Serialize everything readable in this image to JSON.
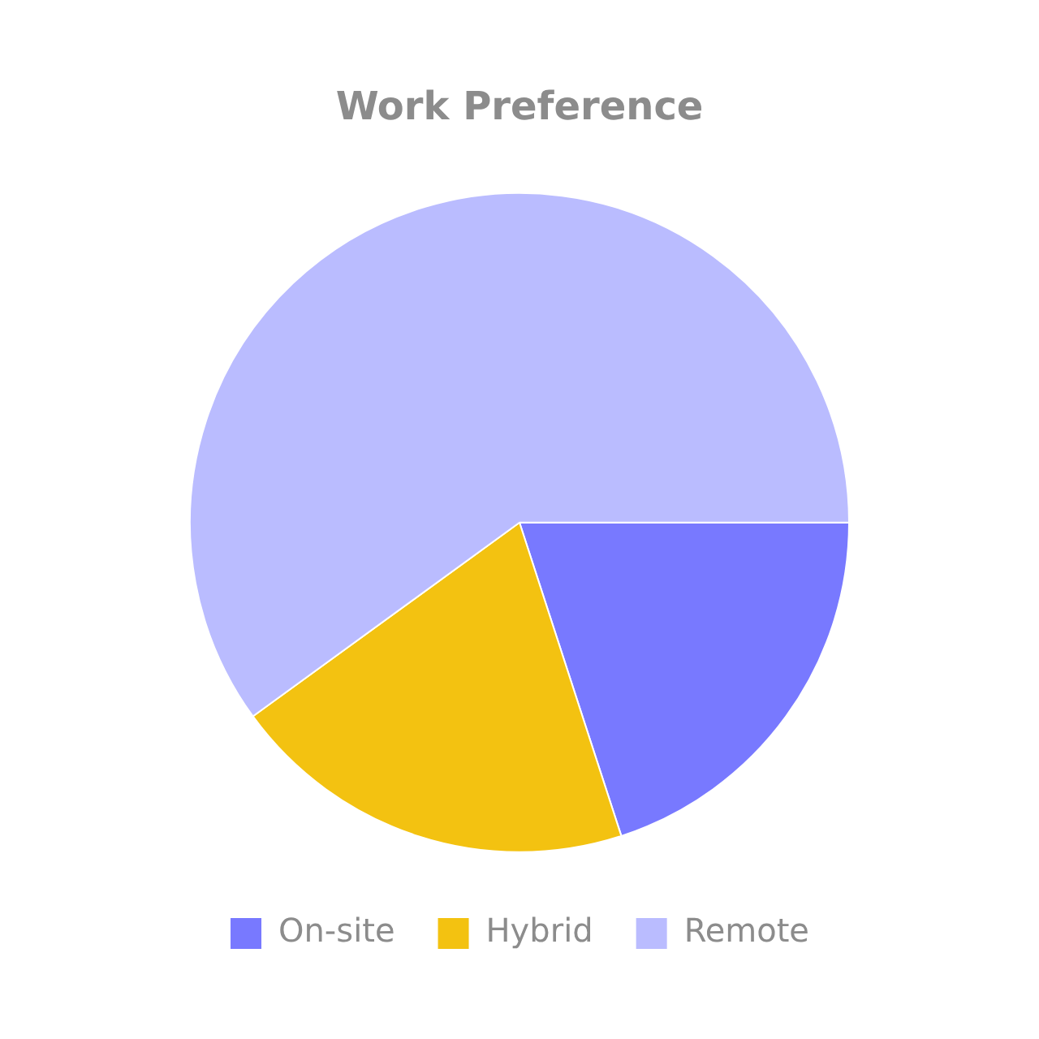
{
  "chart_data": {
    "type": "pie",
    "title": "Work Preference",
    "categories": [
      "On-site",
      "Hybrid",
      "Remote"
    ],
    "values": [
      20,
      20,
      60
    ],
    "colors": [
      "#7879ff",
      "#f3c211",
      "#babcff"
    ],
    "legend": "bottom"
  }
}
